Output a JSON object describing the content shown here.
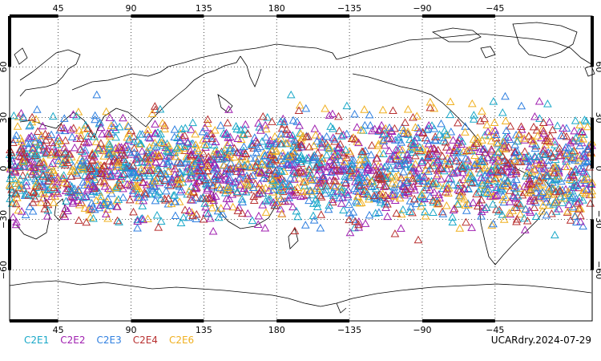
{
  "chart_data": {
    "type": "scatter",
    "projection": "equirectangular",
    "xlim": [
      15,
      375
    ],
    "ylim": [
      -90,
      90
    ],
    "lon_tick_labels": [
      "45",
      "90",
      "135",
      "180",
      "−135",
      "−90",
      "−45"
    ],
    "lat_tick_labels": [
      "60",
      "30",
      "0",
      "−30",
      "−60"
    ],
    "lat_ticks": [
      60,
      30,
      0,
      -30,
      -60
    ],
    "lon_ticks": [
      45,
      90,
      135,
      180,
      225,
      270,
      315
    ],
    "grid": true,
    "marker": "triangle-open",
    "latitude_band": [
      -45,
      45
    ],
    "series": [
      {
        "name": "C2E1",
        "color": "#19a8c8"
      },
      {
        "name": "C2E2",
        "color": "#a020b0"
      },
      {
        "name": "C2E3",
        "color": "#2f7fe0"
      },
      {
        "name": "C2E4",
        "color": "#b83030"
      },
      {
        "name": "C2E6",
        "color": "#f0b020"
      }
    ]
  },
  "footer": "UCARdry.2024-07-29"
}
